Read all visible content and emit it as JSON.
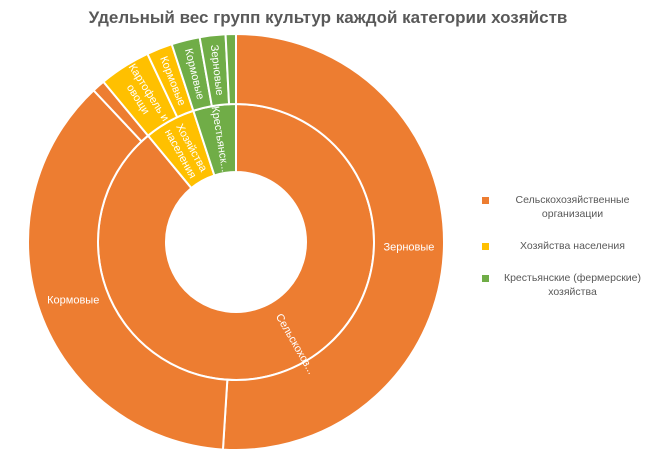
{
  "chart_data": {
    "type": "sunburst",
    "title": "Удельный вес групп культур каждой категории хозяйств",
    "legend_position": "right",
    "series_colors": {
      "org": "#ED7D31",
      "pop": "#FFC000",
      "farm": "#70AD47"
    },
    "inner_ring": [
      {
        "key": "org",
        "label": "Сельскохоз...",
        "value": 89
      },
      {
        "key": "pop",
        "label": "Хозяйства населения",
        "value": 6
      },
      {
        "key": "farm",
        "label": "Крестьянск...",
        "value": 5
      }
    ],
    "outer_ring": [
      {
        "parent": "org",
        "label": "Зерновые",
        "value": 51
      },
      {
        "parent": "org",
        "label": "Кормовые",
        "value": 37
      },
      {
        "parent": "org",
        "label": "",
        "value": 1
      },
      {
        "parent": "pop",
        "label": "Картофель и овощи",
        "value": 4
      },
      {
        "parent": "pop",
        "label": "Кормовые",
        "value": 2
      },
      {
        "parent": "farm",
        "label": "Кормовые",
        "value": 2.2
      },
      {
        "parent": "farm",
        "label": "Зерновые",
        "value": 2
      },
      {
        "parent": "farm",
        "label": "",
        "value": 0.8
      }
    ]
  },
  "legend": [
    {
      "key": "org",
      "label": "Сельскохозяйственные организации"
    },
    {
      "key": "pop",
      "label": "Хозяйства населения"
    },
    {
      "key": "farm",
      "label": "Крестьянские (фермерские) хозяйства"
    }
  ]
}
